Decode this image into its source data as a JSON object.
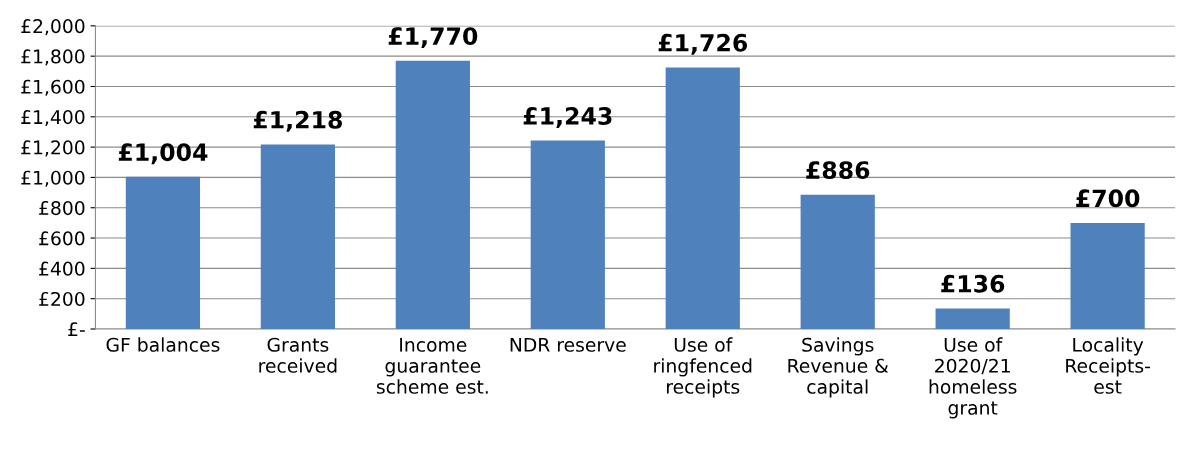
{
  "chart_data": {
    "type": "bar",
    "categories": [
      "GF balances",
      "Grants\nreceived",
      "Income\nguarantee\nscheme est.",
      "NDR reserve",
      "Use of\nringfenced\nreceipts",
      "Savings\nRevenue &\ncapital",
      "Use of\n2020/21\nhomeless\ngrant",
      "Locality\nReceipts-\nest"
    ],
    "values": [
      1004,
      1218,
      1770,
      1243,
      1726,
      886,
      136,
      700
    ],
    "value_labels": [
      "£1,004",
      "£1,218",
      "£1,770",
      "£1,243",
      "£1,726",
      "£886",
      "£136",
      "£700"
    ],
    "color": "#4f81bd",
    "ylim": [
      0,
      2000
    ],
    "yticks": [
      {
        "value": 0,
        "label": "£-"
      },
      {
        "value": 200,
        "label": "£200"
      },
      {
        "value": 400,
        "label": "£400"
      },
      {
        "value": 600,
        "label": "£600"
      },
      {
        "value": 800,
        "label": "£800"
      },
      {
        "value": 1000,
        "label": "£1,000"
      },
      {
        "value": 1200,
        "label": "£1,200"
      },
      {
        "value": 1400,
        "label": "£1,400"
      },
      {
        "value": 1600,
        "label": "£1,600"
      },
      {
        "value": 1800,
        "label": "£1,800"
      },
      {
        "value": 2000,
        "label": "£2,000"
      }
    ],
    "grid": "y"
  }
}
